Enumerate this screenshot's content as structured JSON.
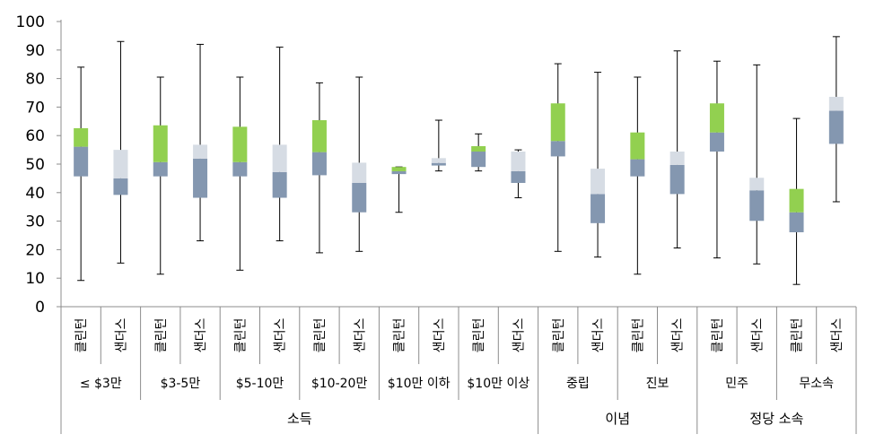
{
  "chart_data": {
    "type": "box",
    "ylim": [
      0,
      100
    ],
    "yticks": [
      0,
      10,
      20,
      30,
      40,
      50,
      60,
      70,
      80,
      90,
      100
    ],
    "gridlines": false,
    "colors": {
      "clinton_upper": "#92d050",
      "sanders_upper": "#d6dce4",
      "lower": "#8497b0"
    },
    "groups": [
      {
        "label": "소득",
        "subgroups": [
          "≤ $3만",
          "$3-5만",
          "$5-10만",
          "$10-20만",
          "$10만 이하",
          "$10만 이상"
        ]
      },
      {
        "label": "이념",
        "subgroups": [
          "중립",
          "진보"
        ]
      },
      {
        "label": "정당 소속",
        "subgroups": [
          "민주",
          "무소속"
        ]
      }
    ],
    "candidates": [
      "클린턴",
      "샌더스"
    ],
    "boxes": [
      {
        "subgroup": "≤ $3만",
        "candidate": "클린턴",
        "min": 9.2,
        "q1": 45.7,
        "median": 56.1,
        "q3": 62.6,
        "max": 84
      },
      {
        "subgroup": "≤ $3만",
        "candidate": "샌더스",
        "min": 15.3,
        "q1": 39.2,
        "median": 45,
        "q3": 55,
        "max": 93
      },
      {
        "subgroup": "$3-5만",
        "candidate": "클린턴",
        "min": 11.4,
        "q1": 45.7,
        "median": 50.7,
        "q3": 63.6,
        "max": 80.5
      },
      {
        "subgroup": "$3-5만",
        "candidate": "샌더스",
        "min": 23.1,
        "q1": 38.2,
        "median": 51.9,
        "q3": 56.8,
        "max": 92
      },
      {
        "subgroup": "$5-10만",
        "candidate": "클린턴",
        "min": 12.8,
        "q1": 45.7,
        "median": 50.7,
        "q3": 63.1,
        "max": 80.5
      },
      {
        "subgroup": "$5-10만",
        "candidate": "샌더스",
        "min": 23.1,
        "q1": 38.2,
        "median": 47.2,
        "q3": 56.8,
        "max": 91
      },
      {
        "subgroup": "$10-20만",
        "candidate": "클린턴",
        "min": 18.9,
        "q1": 46.1,
        "median": 54.2,
        "q3": 65.4,
        "max": 78.5
      },
      {
        "subgroup": "$10-20만",
        "candidate": "샌더스",
        "min": 19.4,
        "q1": 33.1,
        "median": 43.4,
        "q3": 50.5,
        "max": 80.5
      },
      {
        "subgroup": "$10만 이하",
        "candidate": "클린턴",
        "min": 33.1,
        "q1": 46.5,
        "median": 47.5,
        "q3": 49,
        "max": 49
      },
      {
        "subgroup": "$10만 이하",
        "candidate": "샌더스",
        "min": 47.6,
        "q1": 49.5,
        "median": 50.4,
        "q3": 52.1,
        "max": 65.4
      },
      {
        "subgroup": "$10만 이상",
        "candidate": "클린턴",
        "min": 47.6,
        "q1": 49,
        "median": 54.4,
        "q3": 56.3,
        "max": 60.6
      },
      {
        "subgroup": "$10만 이상",
        "candidate": "샌더스",
        "min": 38.2,
        "q1": 43.4,
        "median": 47.5,
        "q3": 54.4,
        "max": 55
      },
      {
        "subgroup": "중립",
        "candidate": "클린턴",
        "min": 19.4,
        "q1": 52.7,
        "median": 58.1,
        "q3": 71.3,
        "max": 85.2
      },
      {
        "subgroup": "중립",
        "candidate": "샌더스",
        "min": 17.4,
        "q1": 29.3,
        "median": 39.5,
        "q3": 48.4,
        "max": 82.2
      },
      {
        "subgroup": "진보",
        "candidate": "클린턴",
        "min": 11.4,
        "q1": 45.7,
        "median": 51.7,
        "q3": 61.1,
        "max": 80.5
      },
      {
        "subgroup": "진보",
        "candidate": "샌더스",
        "min": 20.6,
        "q1": 39.5,
        "median": 49.7,
        "q3": 54.4,
        "max": 89.7
      },
      {
        "subgroup": "민주",
        "candidate": "클린턴",
        "min": 17.1,
        "q1": 54.4,
        "median": 61.1,
        "q3": 71.3,
        "max": 86.1
      },
      {
        "subgroup": "민주",
        "candidate": "샌더스",
        "min": 15,
        "q1": 30.1,
        "median": 40.8,
        "q3": 45.2,
        "max": 84.8
      },
      {
        "subgroup": "무소속",
        "candidate": "클린턴",
        "min": 7.8,
        "q1": 26.1,
        "median": 33.1,
        "q3": 41.3,
        "max": 66
      },
      {
        "subgroup": "무소속",
        "candidate": "샌더스",
        "min": 36.8,
        "q1": 57.1,
        "median": 68.7,
        "q3": 73.6,
        "max": 94.7
      }
    ]
  }
}
